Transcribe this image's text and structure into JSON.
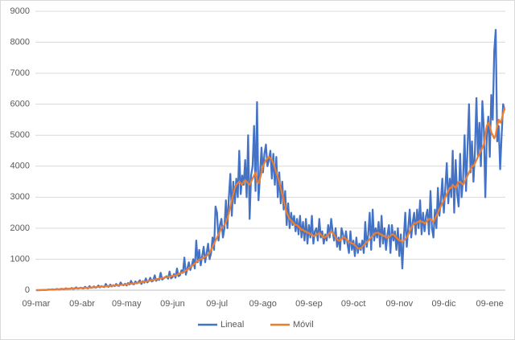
{
  "chart_data": {
    "type": "line",
    "categories": [
      "09-mar",
      null,
      null,
      null,
      null,
      null,
      null,
      null,
      null,
      null,
      null,
      null,
      null,
      null,
      null,
      null,
      null,
      null,
      null,
      null,
      null,
      null,
      null,
      null,
      null,
      null,
      null,
      null,
      null,
      null,
      null,
      "09-abr",
      null,
      null,
      null,
      null,
      null,
      null,
      null,
      null,
      null,
      null,
      null,
      null,
      null,
      null,
      null,
      null,
      null,
      null,
      null,
      null,
      null,
      null,
      null,
      null,
      null,
      null,
      null,
      null,
      null,
      "09-may",
      null,
      null,
      null,
      null,
      null,
      null,
      null,
      null,
      null,
      null,
      null,
      null,
      null,
      null,
      null,
      null,
      null,
      null,
      null,
      null,
      null,
      null,
      null,
      null,
      null,
      null,
      null,
      null,
      null,
      null,
      "09-jun",
      null,
      null,
      null,
      null,
      null,
      null,
      null,
      null,
      null,
      null,
      null,
      null,
      null,
      null,
      null,
      null,
      null,
      null,
      null,
      null,
      null,
      null,
      null,
      null,
      null,
      null,
      null,
      null,
      null,
      "09-jul",
      null,
      null,
      null,
      null,
      null,
      null,
      null,
      null,
      null,
      null,
      null,
      null,
      null,
      null,
      null,
      null,
      null,
      null,
      null,
      null,
      null,
      null,
      null,
      null,
      null,
      null,
      null,
      null,
      null,
      null,
      "09-ago",
      null,
      null,
      null,
      null,
      null,
      null,
      null,
      null,
      null,
      null,
      null,
      null,
      null,
      null,
      null,
      null,
      null,
      null,
      null,
      null,
      null,
      null,
      null,
      null,
      null,
      null,
      null,
      null,
      null,
      null,
      "09-sep",
      null,
      null,
      null,
      null,
      null,
      null,
      null,
      null,
      null,
      null,
      null,
      null,
      null,
      null,
      null,
      null,
      null,
      null,
      null,
      null,
      null,
      null,
      null,
      null,
      null,
      null,
      null,
      null,
      null,
      "09-oct",
      null,
      null,
      null,
      null,
      null,
      null,
      null,
      null,
      null,
      null,
      null,
      null,
      null,
      null,
      null,
      null,
      null,
      null,
      null,
      null,
      null,
      null,
      null,
      null,
      null,
      null,
      null,
      null,
      null,
      null,
      "09-nov",
      null,
      null,
      null,
      null,
      null,
      null,
      null,
      null,
      null,
      null,
      null,
      null,
      null,
      null,
      null,
      null,
      null,
      null,
      null,
      null,
      null,
      null,
      null,
      null,
      null,
      null,
      null,
      null,
      null,
      "09-dic",
      null,
      null,
      null,
      null,
      null,
      null,
      null,
      null,
      null,
      null,
      null,
      null,
      null,
      null,
      null,
      null,
      null,
      null,
      null,
      null,
      null,
      null,
      null,
      null,
      null,
      null,
      null,
      null,
      null,
      null,
      "09-ene",
      null,
      null,
      null,
      null,
      null,
      null,
      null,
      null,
      null,
      null
    ],
    "series": [
      {
        "name": "Lineal",
        "color": "#4472c4",
        "values": [
          0,
          0,
          2,
          1,
          5,
          3,
          10,
          8,
          20,
          12,
          15,
          30,
          18,
          22,
          40,
          25,
          20,
          45,
          35,
          30,
          60,
          38,
          50,
          45,
          70,
          40,
          55,
          90,
          50,
          60,
          80,
          60,
          55,
          110,
          70,
          60,
          130,
          75,
          90,
          120,
          80,
          100,
          150,
          90,
          130,
          110,
          100,
          200,
          120,
          110,
          180,
          120,
          160,
          130,
          200,
          150,
          140,
          250,
          170,
          160,
          210,
          150,
          230,
          180,
          300,
          200,
          190,
          280,
          220,
          260,
          320,
          200,
          290,
          240,
          380,
          250,
          300,
          400,
          280,
          310,
          480,
          300,
          360,
          330,
          560,
          340,
          380,
          420,
          450,
          370,
          600,
          380,
          420,
          520,
          400,
          700,
          450,
          480,
          640,
          560,
          1050,
          500,
          700,
          900,
          650,
          800,
          1000,
          700,
          1600,
          900,
          1300,
          800,
          1100,
          1400,
          900,
          1200,
          1500,
          1000,
          1200,
          1700,
          1300,
          2700,
          2500,
          1600,
          2100,
          2300,
          1700,
          2000,
          2900,
          2000,
          3000,
          3750,
          2400,
          3500,
          2800,
          3600,
          3000,
          4500,
          3100,
          3700,
          3400,
          4200,
          3000,
          5000,
          2300,
          3700,
          4000,
          5300,
          3200,
          6070,
          2900,
          3700,
          4600,
          3800,
          4400,
          4700,
          4000,
          4200,
          4500,
          3600,
          4400,
          3400,
          4300,
          3000,
          3800,
          2800,
          3500,
          2600,
          3200,
          2100,
          2800,
          2000,
          2500,
          2100,
          2400,
          1900,
          2300,
          1800,
          2400,
          1700,
          2200,
          1600,
          2300,
          1500,
          2100,
          1700,
          2400,
          1500,
          1900,
          2000,
          1600,
          2300,
          1700,
          1900,
          1500,
          1800,
          1600,
          2100,
          1700,
          2300,
          1900,
          1600,
          2000,
          1400,
          1700,
          1300,
          2000,
          1800,
          1500,
          1900,
          1500,
          1200,
          1900,
          1300,
          1600,
          1100,
          1700,
          1200,
          1500,
          1300,
          1600,
          1200,
          2200,
          1400,
          1800,
          2500,
          1300,
          2600,
          1600,
          2000,
          1700,
          2200,
          1400,
          2400,
          1500,
          2000,
          1300,
          1800,
          2100,
          1200,
          2100,
          1600,
          1900,
          1300,
          2000,
          1100,
          1800,
          700,
          1700,
          2500,
          1400,
          2000,
          2600,
          1700,
          2200,
          2500,
          1800,
          2600,
          2000,
          2900,
          1800,
          2500,
          1900,
          2400,
          2600,
          1800,
          3200,
          2000,
          1700,
          2600,
          2000,
          3300,
          2400,
          2900,
          3600,
          2500,
          3300,
          4100,
          2800,
          3600,
          3000,
          4500,
          2500,
          4200,
          3100,
          2700,
          4400,
          3000,
          3600,
          5000,
          3200,
          4600,
          6000,
          3800,
          4800,
          3500,
          4500,
          6200,
          4300,
          5400,
          4000,
          6100,
          5200,
          3000,
          5000,
          5600,
          4300,
          6300,
          5500,
          7700,
          8400,
          4800,
          5300,
          3900,
          5000,
          6000,
          5800
        ]
      },
      {
        "name": "Móvil",
        "color": "#ed7d31",
        "values": [
          0,
          0,
          1,
          2,
          3,
          5,
          7,
          10,
          12,
          15,
          18,
          20,
          22,
          25,
          28,
          30,
          33,
          35,
          38,
          40,
          42,
          45,
          48,
          50,
          52,
          55,
          57,
          60,
          62,
          65,
          68,
          70,
          72,
          75,
          78,
          80,
          85,
          88,
          90,
          95,
          98,
          100,
          105,
          110,
          112,
          115,
          120,
          125,
          128,
          130,
          135,
          140,
          145,
          150,
          155,
          160,
          165,
          170,
          175,
          180,
          185,
          190,
          195,
          200,
          210,
          215,
          220,
          225,
          235,
          240,
          250,
          255,
          265,
          270,
          280,
          290,
          300,
          310,
          320,
          330,
          340,
          350,
          360,
          370,
          380,
          390,
          400,
          410,
          420,
          430,
          440,
          450,
          460,
          470,
          480,
          500,
          520,
          540,
          560,
          580,
          600,
          630,
          660,
          700,
          740,
          780,
          820,
          860,
          900,
          940,
          980,
          1000,
          1020,
          1050,
          1080,
          1100,
          1150,
          1200,
          1300,
          1400,
          1500,
          1600,
          1700,
          1800,
          1900,
          2000,
          2050,
          2100,
          2200,
          2300,
          2500,
          2700,
          2900,
          3100,
          3300,
          3400,
          3450,
          3500,
          3450,
          3400,
          3500,
          3550,
          3500,
          3450,
          3400,
          3500,
          3600,
          3700,
          3800,
          3500,
          3450,
          3600,
          3800,
          4000,
          4100,
          4200,
          4250,
          4300,
          4250,
          4200,
          4100,
          3950,
          3800,
          3650,
          3500,
          3300,
          3100,
          2900,
          2700,
          2500,
          2400,
          2300,
          2250,
          2200,
          2150,
          2100,
          2100,
          2050,
          2000,
          1950,
          1950,
          1900,
          1900,
          1850,
          1850,
          1800,
          1800,
          1750,
          1750,
          1800,
          1800,
          1850,
          1800,
          1750,
          1700,
          1700,
          1750,
          1800,
          1850,
          1900,
          1850,
          1800,
          1700,
          1650,
          1600,
          1600,
          1650,
          1700,
          1700,
          1650,
          1600,
          1550,
          1550,
          1500,
          1500,
          1450,
          1400,
          1350,
          1350,
          1350,
          1400,
          1450,
          1500,
          1550,
          1600,
          1650,
          1700,
          1750,
          1800,
          1850,
          1850,
          1850,
          1800,
          1800,
          1750,
          1750,
          1700,
          1700,
          1700,
          1750,
          1800,
          1800,
          1750,
          1700,
          1650,
          1600,
          1600,
          1550,
          1600,
          1650,
          1700,
          1800,
          1900,
          2000,
          2100,
          2150,
          2150,
          2200,
          2200,
          2250,
          2200,
          2200,
          2150,
          2200,
          2250,
          2300,
          2300,
          2250,
          2200,
          2300,
          2400,
          2500,
          2600,
          2700,
          2800,
          2900,
          3000,
          3100,
          3200,
          3300,
          3300,
          3400,
          3350,
          3300,
          3400,
          3500,
          3500,
          3450,
          3400,
          3500,
          3600,
          3700,
          3800,
          3900,
          4000,
          4000,
          4100,
          4200,
          4300,
          4400,
          4500,
          4600,
          4700,
          5000,
          5300,
          5400,
          5300,
          5100,
          5000,
          4900,
          5000,
          5300,
          5500,
          5400,
          5500,
          5700,
          5900
        ]
      }
    ],
    "ylim": [
      0,
      9000
    ],
    "yticks": [
      0,
      1000,
      2000,
      3000,
      4000,
      5000,
      6000,
      7000,
      8000,
      9000
    ],
    "grid": true,
    "legend": "bottom"
  }
}
